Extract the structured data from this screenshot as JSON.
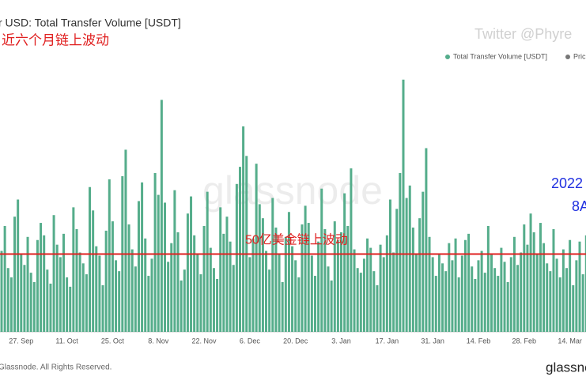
{
  "chart_data": {
    "type": "bar",
    "title": "r USD: Total Transfer Volume [USDT]",
    "annotations": {
      "top_left": "近六个月链上波动",
      "watermark_twitter": "Twitter @Phyre",
      "watermark": "glassnode",
      "right_1": "2022",
      "right_2": "8A"
    },
    "legend": {
      "series": "Total Transfer Volume [USDT]",
      "other": "Pric"
    },
    "footer": {
      "copyright": "Glassnode. All Rights Reserved.",
      "logo": "glassnode"
    },
    "reference_line": {
      "value": 5,
      "label": "50亿美金链上波动",
      "color": "#e02020"
    },
    "color": "#55ad8b",
    "ylim": [
      0,
      17
    ],
    "categories": [
      null,
      null,
      null,
      null,
      null,
      null,
      "27. Sep",
      null,
      null,
      null,
      null,
      null,
      null,
      null,
      null,
      null,
      null,
      null,
      null,
      null,
      "11. Oct",
      null,
      null,
      null,
      null,
      null,
      null,
      null,
      null,
      null,
      null,
      null,
      null,
      null,
      "25. Oct",
      null,
      null,
      null,
      null,
      null,
      null,
      null,
      null,
      null,
      null,
      null,
      null,
      null,
      "8. Nov",
      null,
      null,
      null,
      null,
      null,
      null,
      null,
      null,
      null,
      null,
      null,
      null,
      null,
      "22. Nov",
      null,
      null,
      null,
      null,
      null,
      null,
      null,
      null,
      null,
      null,
      null,
      null,
      null,
      "6. Dec",
      null,
      null,
      null,
      null,
      null,
      null,
      null,
      null,
      null,
      null,
      null,
      null,
      null,
      "20. Dec",
      null,
      null,
      null,
      null,
      null,
      null,
      null,
      null,
      null,
      null,
      null,
      null,
      null,
      "3. Jan",
      null,
      null,
      null,
      null,
      null,
      null,
      null,
      null,
      null,
      null,
      null,
      null,
      null,
      "17. Jan",
      null,
      null,
      null,
      null,
      null,
      null,
      null,
      null,
      null,
      null,
      null,
      null,
      null,
      "31. Jan",
      null,
      null,
      null,
      null,
      null,
      null,
      null,
      null,
      null,
      null,
      null,
      null,
      null,
      "14. Feb",
      null,
      null,
      null,
      null,
      null,
      null,
      null,
      null,
      null,
      null,
      null,
      null,
      null,
      "28. Feb",
      null,
      null,
      null,
      null,
      null,
      null,
      null,
      null,
      null,
      null,
      null,
      null,
      null,
      "14. Mar",
      null,
      null,
      null,
      null,
      null
    ],
    "values": [
      5.2,
      6.8,
      4.1,
      3.5,
      7.4,
      8.5,
      5.0,
      4.3,
      6.1,
      3.8,
      3.2,
      5.9,
      7.0,
      6.2,
      4.0,
      3.1,
      7.5,
      5.6,
      4.8,
      6.3,
      3.5,
      2.9,
      8.0,
      6.6,
      5.1,
      4.4,
      3.7,
      9.3,
      7.8,
      5.5,
      4.9,
      3.0,
      6.5,
      9.8,
      7.1,
      4.6,
      3.9,
      10.0,
      11.7,
      6.9,
      5.3,
      4.2,
      8.4,
      9.6,
      6.0,
      3.6,
      4.7,
      10.2,
      8.8,
      14.9,
      8.3,
      4.5,
      5.7,
      9.1,
      6.4,
      3.3,
      4.0,
      7.6,
      8.7,
      6.2,
      5.0,
      3.7,
      6.8,
      9.0,
      5.4,
      4.1,
      3.4,
      8.0,
      6.3,
      7.4,
      5.8,
      4.3,
      9.5,
      10.6,
      13.2,
      11.3,
      4.8,
      6.0,
      10.8,
      8.2,
      7.3,
      5.2,
      4.0,
      8.6,
      6.7,
      5.0,
      3.2,
      6.1,
      7.7,
      5.5,
      4.6,
      3.5,
      6.9,
      8.1,
      7.0,
      4.9,
      3.6,
      5.8,
      9.2,
      6.6,
      4.2,
      3.3,
      7.1,
      5.9,
      6.4,
      8.9,
      6.8,
      10.5,
      5.3,
      4.1,
      3.8,
      4.7,
      6.0,
      5.4,
      3.9,
      3.0,
      5.6,
      4.8,
      6.2,
      8.5,
      5.1,
      7.9,
      10.2,
      16.2,
      8.6,
      9.4,
      6.7,
      5.0,
      7.3,
      9.0,
      11.8,
      6.1,
      4.8,
      3.6,
      5.0,
      4.4,
      3.9,
      5.7,
      4.6,
      6.0,
      3.5,
      4.9,
      5.9,
      6.3,
      4.2,
      3.4,
      4.6,
      5.2,
      3.8,
      6.8,
      5.0,
      4.1,
      3.6,
      5.4,
      4.5,
      3.2,
      4.8,
      6.1,
      4.3,
      5.1,
      6.9,
      5.6,
      7.6,
      6.4,
      5.0,
      7.0,
      5.7,
      4.4,
      3.9,
      6.6,
      4.7,
      3.5,
      5.3,
      4.1,
      5.9,
      3.0,
      4.6,
      5.8,
      3.7,
      6.2
    ]
  }
}
